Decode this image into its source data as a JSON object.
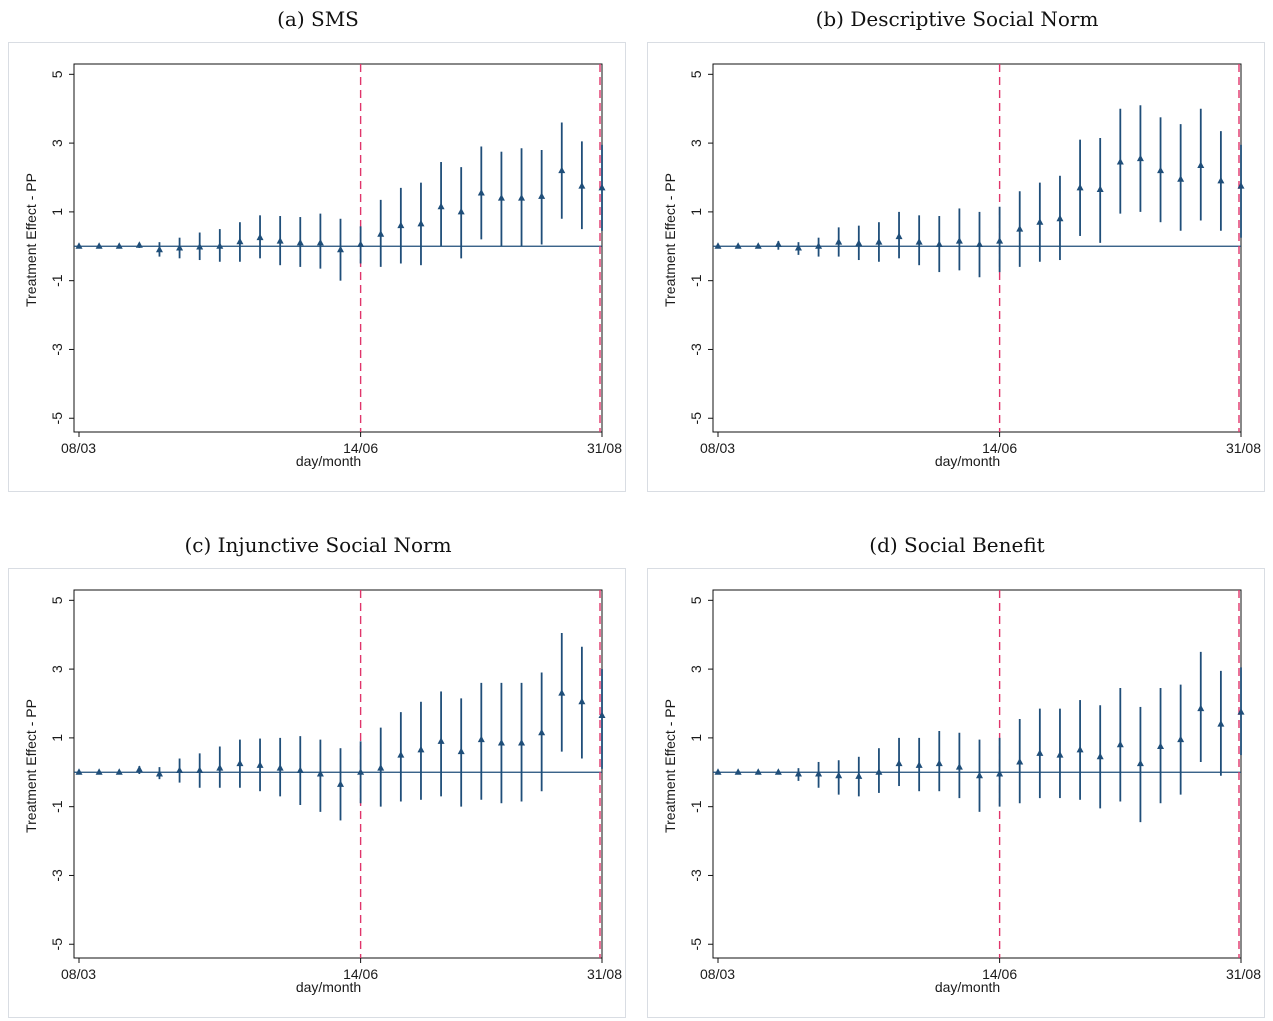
{
  "colors": {
    "marker": "#1f4e79",
    "zero_line": "#1f4e79",
    "event_line": "#e0356b",
    "axis": "#111111",
    "frame": "#d9dde3"
  },
  "chart_data": [
    {
      "type": "scatter",
      "caption": "(a) SMS",
      "xlabel": "day/month",
      "ylabel": "Treatment Effect - PP",
      "ylim": [
        -5.4,
        5.3
      ],
      "x_ticks": [
        "08/03",
        "14/06",
        "31/08"
      ],
      "x_tick_index": [
        0,
        14,
        26
      ],
      "y_ticks": [
        5,
        3,
        1,
        -1,
        -3,
        -5
      ],
      "event_lines_index": [
        14,
        26
      ],
      "grid": false,
      "series": [
        {
          "estimates": [
            0.0,
            0.0,
            0.0,
            0.03,
            -0.1,
            -0.05,
            -0.02,
            0.0,
            0.13,
            0.25,
            0.15,
            0.1,
            0.1,
            -0.1,
            0.05,
            0.35,
            0.6,
            0.65,
            1.15,
            1.0,
            1.55,
            1.4,
            1.4,
            1.45,
            2.2,
            1.75,
            1.7
          ],
          "lower": [
            -0.02,
            -0.02,
            -0.03,
            -0.05,
            -0.3,
            -0.35,
            -0.4,
            -0.45,
            -0.45,
            -0.35,
            -0.55,
            -0.6,
            -0.65,
            -1.0,
            -0.5,
            -0.6,
            -0.5,
            -0.55,
            0.0,
            -0.35,
            0.2,
            0.0,
            0.0,
            0.05,
            0.8,
            0.5,
            0.45
          ],
          "upper": [
            0.03,
            0.03,
            0.04,
            0.1,
            0.12,
            0.25,
            0.4,
            0.5,
            0.7,
            0.9,
            0.88,
            0.85,
            0.95,
            0.8,
            0.58,
            1.35,
            1.7,
            1.85,
            2.45,
            2.3,
            2.9,
            2.75,
            2.85,
            2.8,
            3.6,
            3.05,
            2.95
          ]
        }
      ]
    },
    {
      "type": "scatter",
      "caption": "(b) Descriptive Social Norm",
      "xlabel": "day/month",
      "ylabel": "Treatment Effect - PP",
      "ylim": [
        -5.4,
        5.3
      ],
      "x_ticks": [
        "08/03",
        "14/06",
        "31/08"
      ],
      "x_tick_index": [
        0,
        14,
        26
      ],
      "y_ticks": [
        5,
        3,
        1,
        -1,
        -3,
        -5
      ],
      "event_lines_index": [
        14,
        26
      ],
      "grid": false,
      "series": [
        {
          "estimates": [
            0.0,
            0.0,
            0.0,
            0.05,
            -0.05,
            0.0,
            0.12,
            0.08,
            0.12,
            0.28,
            0.12,
            0.05,
            0.15,
            0.05,
            0.15,
            0.5,
            0.7,
            0.8,
            1.7,
            1.65,
            2.45,
            2.55,
            2.2,
            1.95,
            2.35,
            1.9,
            1.75
          ],
          "lower": [
            -0.02,
            -0.02,
            -0.03,
            -0.1,
            -0.25,
            -0.3,
            -0.3,
            -0.4,
            -0.45,
            -0.35,
            -0.55,
            -0.75,
            -0.7,
            -0.9,
            -0.75,
            -0.6,
            -0.45,
            -0.4,
            0.3,
            0.1,
            0.95,
            1.0,
            0.7,
            0.45,
            0.75,
            0.45,
            0.25
          ],
          "upper": [
            0.03,
            0.04,
            0.05,
            0.15,
            0.12,
            0.25,
            0.55,
            0.6,
            0.7,
            1.0,
            0.9,
            0.88,
            1.1,
            1.0,
            1.15,
            1.6,
            1.85,
            2.05,
            3.1,
            3.15,
            4.0,
            4.1,
            3.75,
            3.55,
            4.0,
            3.35,
            2.95
          ]
        }
      ]
    },
    {
      "type": "scatter",
      "caption": "(c) Injunctive Social Norm",
      "xlabel": "day/month",
      "ylabel": "Treatment Effect - PP",
      "ylim": [
        -5.4,
        5.3
      ],
      "x_ticks": [
        "08/03",
        "14/06",
        "31/08"
      ],
      "x_tick_index": [
        0,
        14,
        26
      ],
      "y_ticks": [
        5,
        3,
        1,
        -1,
        -3,
        -5
      ],
      "event_lines_index": [
        14,
        26
      ],
      "grid": false,
      "series": [
        {
          "estimates": [
            0.0,
            0.0,
            0.0,
            0.08,
            -0.05,
            0.05,
            0.05,
            0.12,
            0.25,
            0.2,
            0.12,
            0.05,
            -0.05,
            -0.35,
            0.0,
            0.12,
            0.5,
            0.65,
            0.9,
            0.6,
            0.95,
            0.85,
            0.85,
            1.15,
            2.3,
            2.05,
            1.65
          ],
          "lower": [
            -0.02,
            -0.02,
            -0.03,
            -0.05,
            -0.2,
            -0.3,
            -0.45,
            -0.45,
            -0.45,
            -0.55,
            -0.7,
            -0.95,
            -1.15,
            -1.4,
            -0.9,
            -1.0,
            -0.85,
            -0.8,
            -0.7,
            -1.0,
            -0.8,
            -0.9,
            -0.85,
            -0.55,
            0.6,
            0.4,
            0.1
          ],
          "upper": [
            0.03,
            0.04,
            0.05,
            0.18,
            0.15,
            0.4,
            0.55,
            0.75,
            0.95,
            0.98,
            1.0,
            1.05,
            0.95,
            0.7,
            0.9,
            1.3,
            1.75,
            2.05,
            2.35,
            2.15,
            2.6,
            2.6,
            2.6,
            2.9,
            4.05,
            3.65,
            3.0
          ]
        }
      ]
    },
    {
      "type": "scatter",
      "caption": "(d) Social Benefit",
      "xlabel": "day/month",
      "ylabel": "Treatment Effect - PP",
      "ylim": [
        -5.4,
        5.3
      ],
      "x_ticks": [
        "08/03",
        "14/06",
        "31/08"
      ],
      "x_tick_index": [
        0,
        14,
        26
      ],
      "y_ticks": [
        5,
        3,
        1,
        -1,
        -3,
        -5
      ],
      "event_lines_index": [
        14,
        26
      ],
      "grid": false,
      "series": [
        {
          "estimates": [
            0.0,
            0.0,
            0.0,
            0.0,
            -0.05,
            -0.05,
            -0.1,
            -0.12,
            0.0,
            0.25,
            0.2,
            0.25,
            0.15,
            -0.1,
            -0.05,
            0.3,
            0.55,
            0.5,
            0.65,
            0.45,
            0.8,
            0.25,
            0.75,
            0.95,
            1.85,
            1.4,
            1.75
          ],
          "lower": [
            -0.02,
            -0.02,
            -0.03,
            -0.05,
            -0.25,
            -0.45,
            -0.65,
            -0.7,
            -0.6,
            -0.4,
            -0.55,
            -0.55,
            -0.75,
            -1.15,
            -1.0,
            -0.9,
            -0.75,
            -0.75,
            -0.8,
            -1.05,
            -0.85,
            -1.45,
            -0.9,
            -0.65,
            0.3,
            -0.1,
            0.5
          ],
          "upper": [
            0.03,
            0.04,
            0.05,
            0.05,
            0.12,
            0.3,
            0.35,
            0.45,
            0.7,
            1.0,
            1.0,
            1.2,
            1.15,
            0.95,
            1.0,
            1.55,
            1.85,
            1.85,
            2.1,
            1.95,
            2.45,
            1.9,
            2.45,
            2.55,
            3.5,
            2.95,
            3.05
          ]
        }
      ]
    }
  ]
}
